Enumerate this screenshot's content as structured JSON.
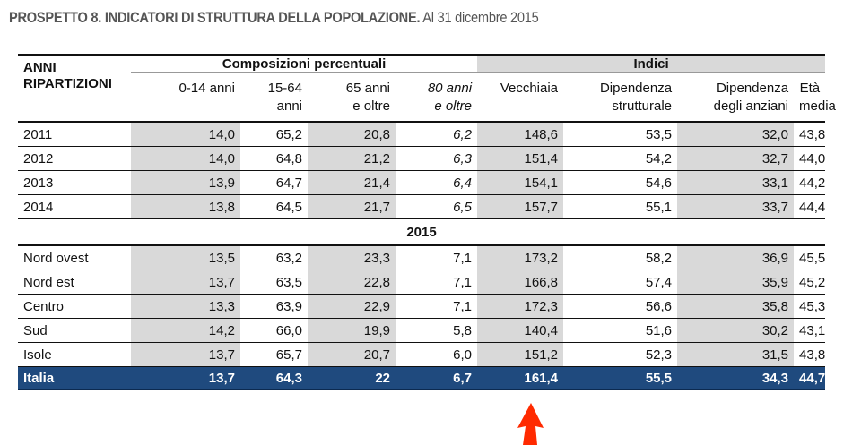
{
  "title": {
    "bold": "PROSPETTO 8. INDICATORI DI STRUTTURA DELLA POPOLAZIONE.",
    "rest": "Al 31 dicembre 2015"
  },
  "header": {
    "row_label": [
      "ANNI",
      "RIPARTIZIONI"
    ],
    "group1": "Composizioni percentuali",
    "group2": "Indici",
    "columns": [
      [
        "0-14 anni",
        ""
      ],
      [
        "15-64",
        "anni"
      ],
      [
        "65 anni",
        "e oltre"
      ],
      [
        "80 anni",
        "e oltre"
      ],
      [
        "Vecchiaia",
        ""
      ],
      [
        "Dipendenza",
        "strutturale"
      ],
      [
        "Dipendenza",
        "degli anziani"
      ],
      [
        "Età",
        "media"
      ]
    ]
  },
  "years": [
    {
      "label": "2011",
      "values": [
        "14,0",
        "65,2",
        "20,8",
        "6,2",
        "148,6",
        "53,5",
        "32,0",
        "43,8"
      ]
    },
    {
      "label": "2012",
      "values": [
        "14,0",
        "64,8",
        "21,2",
        "6,3",
        "151,4",
        "54,2",
        "32,7",
        "44,0"
      ]
    },
    {
      "label": "2013",
      "values": [
        "13,9",
        "64,7",
        "21,4",
        "6,4",
        "154,1",
        "54,6",
        "33,1",
        "44,2"
      ]
    },
    {
      "label": "2014",
      "values": [
        "13,8",
        "64,5",
        "21,7",
        "6,5",
        "157,7",
        "55,1",
        "33,7",
        "44,4"
      ]
    }
  ],
  "section": "2015",
  "regions": [
    {
      "label": "Nord ovest",
      "values": [
        "13,5",
        "63,2",
        "23,3",
        "7,1",
        "173,2",
        "58,2",
        "36,9",
        "45,5"
      ]
    },
    {
      "label": "Nord est",
      "values": [
        "13,7",
        "63,5",
        "22,8",
        "7,1",
        "166,8",
        "57,4",
        "35,9",
        "45,2"
      ]
    },
    {
      "label": "Centro",
      "values": [
        "13,3",
        "63,9",
        "22,9",
        "7,1",
        "172,3",
        "56,6",
        "35,8",
        "45,3"
      ]
    },
    {
      "label": "Sud",
      "values": [
        "14,2",
        "66,0",
        "19,9",
        "5,8",
        "140,4",
        "51,6",
        "30,2",
        "43,1"
      ]
    },
    {
      "label": "Isole",
      "values": [
        "13,7",
        "65,7",
        "20,7",
        "6,0",
        "151,2",
        "52,3",
        "31,5",
        "43,8"
      ]
    }
  ],
  "total": {
    "label": "Italia",
    "values": [
      "13,7",
      "64,3",
      "22",
      "6,7",
      "161,4",
      "55,5",
      "34,3",
      "44,7"
    ]
  },
  "colors": {
    "total_bg": "#1f4a7e",
    "shade": "#d9d9d9",
    "arrow": "#ff2a00"
  },
  "annotation": {
    "icon": "red-arrow-up-icon"
  }
}
